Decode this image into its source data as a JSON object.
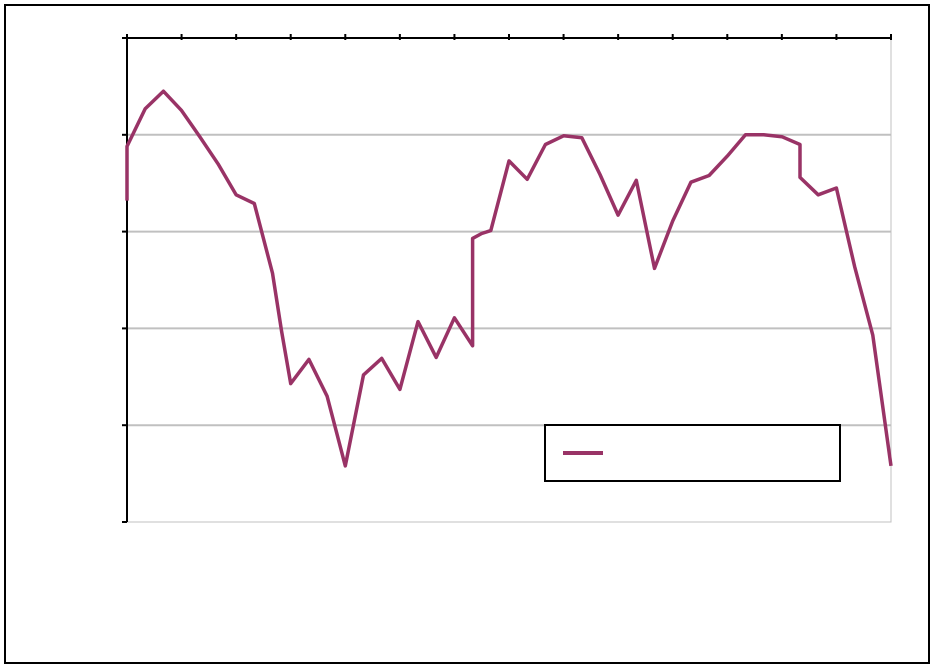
{
  "chart_data": {
    "type": "line",
    "title": "",
    "xlabel": "",
    "ylabel": "",
    "grid": true,
    "legend": {
      "position": "bottom-right",
      "entries": [
        ""
      ]
    },
    "ylim": [
      0,
      5
    ],
    "xlim": [
      0,
      42
    ],
    "x_ticks": [
      0,
      3,
      6,
      9,
      12,
      15,
      18,
      21,
      24,
      27,
      30,
      33,
      36,
      39,
      42
    ],
    "y_ticks": [
      0,
      1,
      2,
      3,
      4,
      5
    ],
    "series": [
      {
        "color": "#993366",
        "x": [
          0,
          0,
          1,
          2,
          3,
          4,
          5,
          6,
          7,
          8,
          8.5,
          9,
          10,
          11,
          12,
          13,
          14,
          15,
          16,
          17,
          18,
          19,
          19,
          19.5,
          20,
          21,
          22,
          23,
          24,
          25,
          26,
          27,
          28,
          29,
          30,
          31,
          32,
          33,
          34,
          35,
          36,
          37,
          37,
          38,
          39,
          40,
          41,
          42
        ],
        "y": [
          3.32,
          3.88,
          4.27,
          4.45,
          4.25,
          3.98,
          3.7,
          3.38,
          3.29,
          2.57,
          1.97,
          1.43,
          1.68,
          1.3,
          0.58,
          1.52,
          1.69,
          1.37,
          2.07,
          1.7,
          2.11,
          1.82,
          2.93,
          2.98,
          3.01,
          3.73,
          3.54,
          3.9,
          3.99,
          3.97,
          3.59,
          3.17,
          3.53,
          2.62,
          3.11,
          3.51,
          3.58,
          3.78,
          4.0,
          4.0,
          3.98,
          3.9,
          3.56,
          3.38,
          3.45,
          2.64,
          1.93,
          0.58
        ]
      }
    ]
  }
}
